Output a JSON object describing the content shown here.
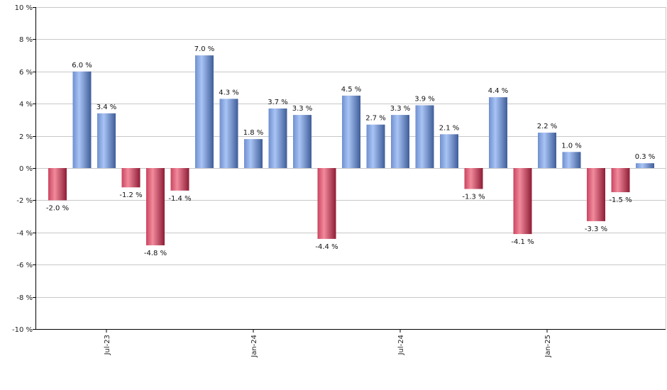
{
  "chart_data": {
    "type": "bar",
    "title": "",
    "xlabel": "",
    "ylabel": "",
    "ylim": [
      -10,
      10
    ],
    "y_ticks": [
      10,
      8,
      6,
      4,
      2,
      0,
      -2,
      -4,
      -6,
      -8,
      -10
    ],
    "y_tick_labels": [
      "10 %",
      "8 %",
      "6 %",
      "4 %",
      "2 %",
      "0 %",
      "-2 %",
      "-4 %",
      "-6 %",
      "-8 %",
      "-10 %"
    ],
    "grid": true,
    "x_tick_labels": [
      {
        "label": "Jul-23",
        "index": 2
      },
      {
        "label": "Jan-24",
        "index": 8
      },
      {
        "label": "Jul-24",
        "index": 14
      },
      {
        "label": "Jan-25",
        "index": 20
      }
    ],
    "values": [
      -2.0,
      6.0,
      3.4,
      -1.2,
      -4.8,
      -1.4,
      7.0,
      4.3,
      1.8,
      3.7,
      3.3,
      -4.4,
      4.5,
      2.7,
      3.3,
      3.9,
      2.1,
      -1.3,
      4.4,
      -4.1,
      2.2,
      1.0,
      -3.3,
      -1.5,
      0.3
    ],
    "value_labels": [
      "-2.0 %",
      "6.0 %",
      "3.4 %",
      "-1.2 %",
      "-4.8 %",
      "-1.4 %",
      "7.0 %",
      "4.3 %",
      "1.8 %",
      "3.7 %",
      "3.3 %",
      "-4.4 %",
      "4.5 %",
      "2.7 %",
      "3.3 %",
      "3.9 %",
      "2.1 %",
      "-1.3 %",
      "4.4 %",
      "-4.1 %",
      "2.2 %",
      "1.0 %",
      "-3.3 %",
      "-1.5 %",
      "0.3 %"
    ],
    "colors": {
      "positive_light": "#a9c4f5",
      "positive_dark": "#3f5d99",
      "negative_light": "#f28a9c",
      "negative_dark": "#8e1c36",
      "grid": "#c8c8c8",
      "axis": "#000000"
    }
  }
}
